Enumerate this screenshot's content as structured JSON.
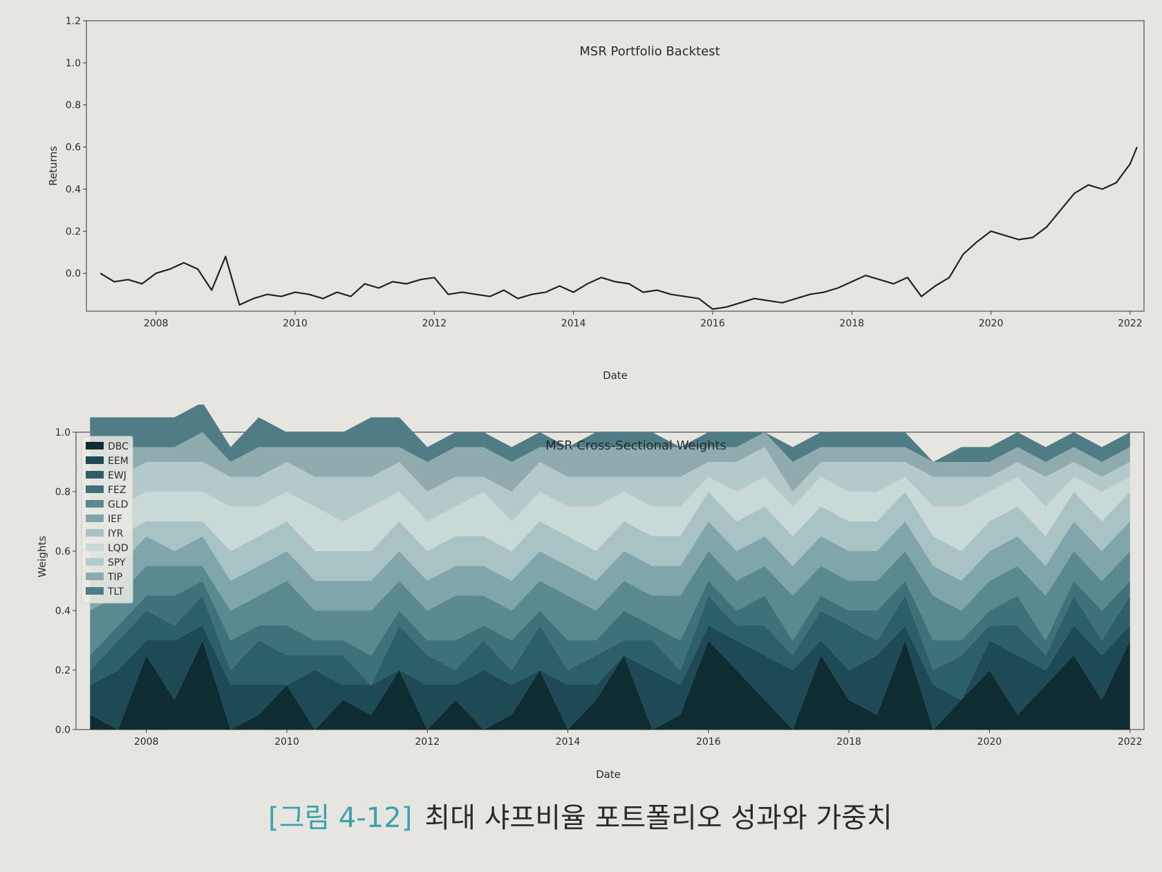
{
  "chart_data": [
    {
      "type": "line",
      "title": "MSR Portfolio Backtest",
      "xlabel": "Date",
      "ylabel": "Returns",
      "xlim": [
        2007.0,
        2022.2
      ],
      "ylim": [
        -0.18,
        1.2
      ],
      "yticks": [
        0.0,
        0.2,
        0.4,
        0.6,
        0.8,
        1.0,
        1.2
      ],
      "ytick_labels": [
        "0.0",
        "0.2",
        "0.4",
        "0.6",
        "0.8",
        "1.0",
        "1.2"
      ],
      "xticks": [
        2008,
        2010,
        2012,
        2014,
        2016,
        2018,
        2020,
        2022
      ],
      "xtick_labels": [
        "2008",
        "2010",
        "2012",
        "2014",
        "2016",
        "2018",
        "2020",
        "2022"
      ],
      "grid": false,
      "series": [
        {
          "color": "#222222",
          "x": [
            2007.2,
            2007.4,
            2007.6,
            2007.8,
            2008.0,
            2008.2,
            2008.4,
            2008.6,
            2008.8,
            2009.0,
            2009.2,
            2009.4,
            2009.6,
            2009.8,
            2010.0,
            2010.2,
            2010.4,
            2010.6,
            2010.8,
            2011.0,
            2011.2,
            2011.4,
            2011.6,
            2011.8,
            2012.0,
            2012.2,
            2012.4,
            2012.6,
            2012.8,
            2013.0,
            2013.2,
            2013.4,
            2013.6,
            2013.8,
            2014.0,
            2014.2,
            2014.4,
            2014.6,
            2014.8,
            2015.0,
            2015.2,
            2015.4,
            2015.6,
            2015.8,
            2016.0,
            2016.2,
            2016.4,
            2016.6,
            2016.8,
            2017.0,
            2017.2,
            2017.4,
            2017.6,
            2017.8,
            2018.0,
            2018.2,
            2018.4,
            2018.6,
            2018.8,
            2019.0,
            2019.2,
            2019.4,
            2019.6,
            2019.8,
            2020.0,
            2020.2,
            2020.4,
            2020.6,
            2020.8,
            2021.0,
            2021.2,
            2021.4,
            2021.6,
            2021.8,
            2022.0,
            2022.1
          ],
          "y": [
            0.0,
            -0.04,
            -0.03,
            -0.05,
            0.0,
            0.02,
            0.05,
            0.02,
            -0.08,
            0.08,
            -0.15,
            -0.12,
            -0.1,
            -0.11,
            -0.09,
            -0.1,
            -0.12,
            -0.09,
            -0.11,
            -0.05,
            -0.07,
            -0.04,
            -0.05,
            -0.03,
            -0.02,
            -0.1,
            -0.09,
            -0.1,
            -0.11,
            -0.08,
            -0.12,
            -0.1,
            -0.09,
            -0.06,
            -0.09,
            -0.05,
            -0.02,
            -0.04,
            -0.05,
            -0.09,
            -0.08,
            -0.1,
            -0.11,
            -0.12,
            -0.17,
            -0.16,
            -0.14,
            -0.12,
            -0.13,
            -0.14,
            -0.12,
            -0.1,
            -0.09,
            -0.07,
            -0.04,
            -0.01,
            -0.03,
            -0.05,
            -0.02,
            -0.11,
            -0.06,
            -0.02,
            0.09,
            0.15,
            0.2,
            0.18,
            0.16,
            0.17,
            0.22,
            0.3,
            0.38,
            0.42,
            0.4,
            0.43,
            0.52,
            0.6
          ]
        }
      ]
    },
    {
      "type": "area",
      "title": "MSR Cross-Sectional Weights",
      "xlabel": "Date",
      "ylabel": "Weights",
      "xlim": [
        2007.0,
        2022.2
      ],
      "ylim": [
        0.0,
        1.0
      ],
      "yticks": [
        0.0,
        0.2,
        0.4,
        0.6,
        0.8,
        1.0
      ],
      "ytick_labels": [
        "0.0",
        "0.2",
        "0.4",
        "0.6",
        "0.8",
        "1.0"
      ],
      "xticks": [
        2008,
        2010,
        2012,
        2014,
        2016,
        2018,
        2020,
        2022
      ],
      "xtick_labels": [
        "2008",
        "2010",
        "2012",
        "2014",
        "2016",
        "2018",
        "2020",
        "2022"
      ],
      "stacked": true,
      "legend_position": "top-left",
      "x": [
        2007.2,
        2007.6,
        2008.0,
        2008.4,
        2008.8,
        2009.2,
        2009.6,
        2010.0,
        2010.4,
        2010.8,
        2011.2,
        2011.6,
        2012.0,
        2012.4,
        2012.8,
        2013.2,
        2013.6,
        2014.0,
        2014.4,
        2014.8,
        2015.2,
        2015.6,
        2016.0,
        2016.4,
        2016.8,
        2017.2,
        2017.6,
        2018.0,
        2018.4,
        2018.8,
        2019.2,
        2019.6,
        2020.0,
        2020.4,
        2020.8,
        2021.2,
        2021.6,
        2022.0
      ],
      "series": [
        {
          "name": "DBC",
          "color": "#0f2c33",
          "values": [
            0.05,
            0.0,
            0.25,
            0.1,
            0.3,
            0.0,
            0.05,
            0.15,
            0.0,
            0.1,
            0.05,
            0.2,
            0.0,
            0.1,
            0.0,
            0.05,
            0.2,
            0.0,
            0.1,
            0.25,
            0.0,
            0.05,
            0.3,
            0.2,
            0.1,
            0.0,
            0.25,
            0.1,
            0.05,
            0.3,
            0.0,
            0.1,
            0.2,
            0.05,
            0.15,
            0.25,
            0.1,
            0.3
          ]
        },
        {
          "name": "EEM",
          "color": "#1d4a54",
          "values": [
            0.1,
            0.2,
            0.05,
            0.2,
            0.05,
            0.15,
            0.1,
            0.0,
            0.2,
            0.05,
            0.1,
            0.0,
            0.15,
            0.05,
            0.2,
            0.1,
            0.0,
            0.15,
            0.05,
            0.0,
            0.2,
            0.1,
            0.05,
            0.1,
            0.15,
            0.2,
            0.05,
            0.1,
            0.2,
            0.05,
            0.15,
            0.0,
            0.1,
            0.2,
            0.05,
            0.1,
            0.15,
            0.05
          ]
        },
        {
          "name": "EWJ",
          "color": "#2c5f6a",
          "values": [
            0.05,
            0.1,
            0.1,
            0.05,
            0.1,
            0.05,
            0.15,
            0.1,
            0.05,
            0.1,
            0.0,
            0.15,
            0.1,
            0.05,
            0.1,
            0.05,
            0.15,
            0.05,
            0.1,
            0.05,
            0.1,
            0.05,
            0.1,
            0.05,
            0.1,
            0.05,
            0.1,
            0.15,
            0.05,
            0.1,
            0.05,
            0.15,
            0.05,
            0.1,
            0.05,
            0.1,
            0.05,
            0.1
          ]
        },
        {
          "name": "FEZ",
          "color": "#3e7179",
          "values": [
            0.05,
            0.05,
            0.05,
            0.1,
            0.05,
            0.1,
            0.05,
            0.1,
            0.05,
            0.05,
            0.1,
            0.05,
            0.05,
            0.1,
            0.05,
            0.1,
            0.05,
            0.1,
            0.05,
            0.1,
            0.05,
            0.1,
            0.05,
            0.05,
            0.1,
            0.05,
            0.05,
            0.05,
            0.1,
            0.05,
            0.1,
            0.05,
            0.05,
            0.1,
            0.05,
            0.05,
            0.1,
            0.05
          ]
        },
        {
          "name": "GLD",
          "color": "#5a8a90",
          "values": [
            0.15,
            0.1,
            0.1,
            0.1,
            0.05,
            0.1,
            0.1,
            0.15,
            0.1,
            0.1,
            0.15,
            0.1,
            0.1,
            0.15,
            0.1,
            0.1,
            0.1,
            0.15,
            0.1,
            0.1,
            0.1,
            0.15,
            0.1,
            0.1,
            0.1,
            0.15,
            0.1,
            0.1,
            0.1,
            0.1,
            0.15,
            0.1,
            0.1,
            0.1,
            0.15,
            0.1,
            0.1,
            0.1
          ]
        },
        {
          "name": "IEF",
          "color": "#7fa6aa",
          "values": [
            0.1,
            0.1,
            0.1,
            0.05,
            0.1,
            0.1,
            0.1,
            0.1,
            0.1,
            0.1,
            0.1,
            0.1,
            0.1,
            0.1,
            0.1,
            0.1,
            0.1,
            0.1,
            0.1,
            0.1,
            0.1,
            0.1,
            0.1,
            0.1,
            0.1,
            0.1,
            0.1,
            0.1,
            0.1,
            0.1,
            0.1,
            0.1,
            0.1,
            0.1,
            0.1,
            0.1,
            0.1,
            0.1
          ]
        },
        {
          "name": "IYR",
          "color": "#a9c3c4",
          "values": [
            0.1,
            0.1,
            0.05,
            0.1,
            0.05,
            0.1,
            0.1,
            0.1,
            0.1,
            0.1,
            0.1,
            0.1,
            0.1,
            0.1,
            0.1,
            0.1,
            0.1,
            0.1,
            0.1,
            0.1,
            0.1,
            0.1,
            0.1,
            0.1,
            0.1,
            0.1,
            0.1,
            0.1,
            0.1,
            0.1,
            0.1,
            0.1,
            0.1,
            0.1,
            0.1,
            0.1,
            0.1,
            0.1
          ]
        },
        {
          "name": "LQD",
          "color": "#c8d9d8",
          "values": [
            0.15,
            0.1,
            0.1,
            0.1,
            0.1,
            0.15,
            0.1,
            0.1,
            0.15,
            0.1,
            0.15,
            0.1,
            0.1,
            0.1,
            0.15,
            0.1,
            0.1,
            0.1,
            0.15,
            0.1,
            0.1,
            0.1,
            0.05,
            0.1,
            0.1,
            0.1,
            0.1,
            0.1,
            0.1,
            0.05,
            0.1,
            0.15,
            0.1,
            0.1,
            0.1,
            0.05,
            0.1,
            0.05
          ]
        },
        {
          "name": "SPY",
          "color": "#b4c9c9",
          "values": [
            0.1,
            0.1,
            0.1,
            0.1,
            0.1,
            0.1,
            0.1,
            0.1,
            0.1,
            0.15,
            0.1,
            0.1,
            0.1,
            0.1,
            0.05,
            0.1,
            0.1,
            0.1,
            0.1,
            0.05,
            0.1,
            0.1,
            0.05,
            0.1,
            0.1,
            0.05,
            0.05,
            0.1,
            0.1,
            0.05,
            0.1,
            0.1,
            0.05,
            0.05,
            0.1,
            0.05,
            0.05,
            0.05
          ]
        },
        {
          "name": "TIP",
          "color": "#8fabae",
          "values": [
            0.1,
            0.1,
            0.05,
            0.05,
            0.1,
            0.05,
            0.1,
            0.05,
            0.1,
            0.1,
            0.1,
            0.05,
            0.1,
            0.1,
            0.1,
            0.1,
            0.05,
            0.1,
            0.1,
            0.1,
            0.1,
            0.1,
            0.05,
            0.05,
            0.05,
            0.1,
            0.05,
            0.05,
            0.05,
            0.05,
            0.05,
            0.05,
            0.05,
            0.05,
            0.05,
            0.05,
            0.05,
            0.05
          ]
        },
        {
          "name": "TLT",
          "color": "#4f7c85",
          "values": [
            0.1,
            0.1,
            0.1,
            0.1,
            0.1,
            0.05,
            0.1,
            0.05,
            0.05,
            0.05,
            0.1,
            0.1,
            0.05,
            0.05,
            0.05,
            0.05,
            0.05,
            0.0,
            0.05,
            0.05,
            0.05,
            0.0,
            0.05,
            0.05,
            0.0,
            0.05,
            0.05,
            0.05,
            0.05,
            0.05,
            0.0,
            0.05,
            0.05,
            0.05,
            0.05,
            0.05,
            0.05,
            0.05
          ]
        }
      ]
    }
  ],
  "caption": {
    "figure_label": "[그림 4-12]",
    "text": "최대 샤프비율 포트폴리오 성과와 가중치"
  }
}
